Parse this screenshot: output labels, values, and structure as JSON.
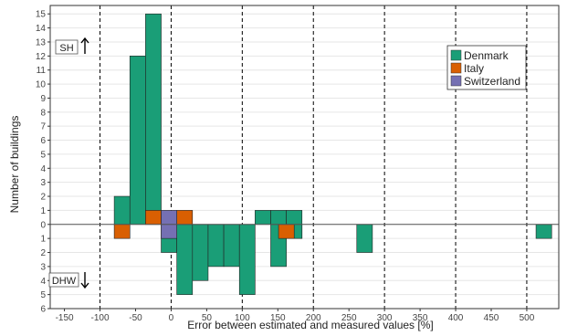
{
  "chart_data": {
    "type": "bar",
    "title": "",
    "xlabel": "Error between estimated and measured values [%]",
    "ylabel": "Number of buildings",
    "xlim": [
      -170,
      545
    ],
    "ylim": [
      -6,
      15.6
    ],
    "x_ticks": [
      -150,
      -100,
      -50,
      0,
      50,
      100,
      150,
      200,
      250,
      300,
      350,
      400,
      450,
      500
    ],
    "x_tick_labels": [
      "-150",
      "-100",
      "-50",
      "0",
      "50",
      "100",
      "150",
      "200",
      "250",
      "300",
      "350",
      "400",
      "450",
      "500"
    ],
    "y_ticks": [
      -6,
      -5,
      -4,
      -3,
      -2,
      -1,
      0,
      1,
      2,
      3,
      4,
      5,
      6,
      7,
      8,
      9,
      10,
      11,
      12,
      13,
      14,
      15
    ],
    "y_tick_labels": [
      "6",
      "5",
      "4",
      "3",
      "2",
      "1",
      "0",
      "1",
      "2",
      "3",
      "4",
      "5",
      "6",
      "7",
      "8",
      "9",
      "10",
      "11",
      "12",
      "13",
      "14",
      "15"
    ],
    "vlines": [
      -100,
      0,
      100,
      200,
      300,
      400,
      500
    ],
    "bin_width": 22,
    "grid": true,
    "legend_position": "top-right",
    "annotations": {
      "top": "SH",
      "bottom": "DHW"
    },
    "series": [
      {
        "name": "Denmark",
        "color": "#1a9e77",
        "SH": [
          {
            "x": -69,
            "y": 2
          },
          {
            "x": -47,
            "y": 12
          },
          {
            "x": -25,
            "y": 15
          },
          {
            "x": 129,
            "y": 1
          },
          {
            "x": 151,
            "y": 1
          },
          {
            "x": 173,
            "y": 1
          }
        ],
        "DHW": [
          {
            "x": -3,
            "y": 2
          },
          {
            "x": 19,
            "y": 5
          },
          {
            "x": 41,
            "y": 4
          },
          {
            "x": 63,
            "y": 3
          },
          {
            "x": 85,
            "y": 3
          },
          {
            "x": 107,
            "y": 5
          },
          {
            "x": 151,
            "y": 3
          },
          {
            "x": 173,
            "y": 1
          },
          {
            "x": 173,
            "y": 1
          },
          {
            "x": 272,
            "y": 2
          },
          {
            "x": 524,
            "y": 1
          }
        ]
      },
      {
        "name": "Italy",
        "color": "#d95f02",
        "SH": [
          {
            "x": -25,
            "y": 1
          },
          {
            "x": 19,
            "y": 1
          }
        ],
        "DHW": [
          {
            "x": -69,
            "y": 1
          },
          {
            "x": 162,
            "y": 1
          }
        ]
      },
      {
        "name": "Switzerland",
        "color": "#7570b3",
        "SH": [
          {
            "x": -3,
            "y": 1
          }
        ],
        "DHW": [
          {
            "x": -3,
            "y": 1
          }
        ]
      }
    ]
  }
}
